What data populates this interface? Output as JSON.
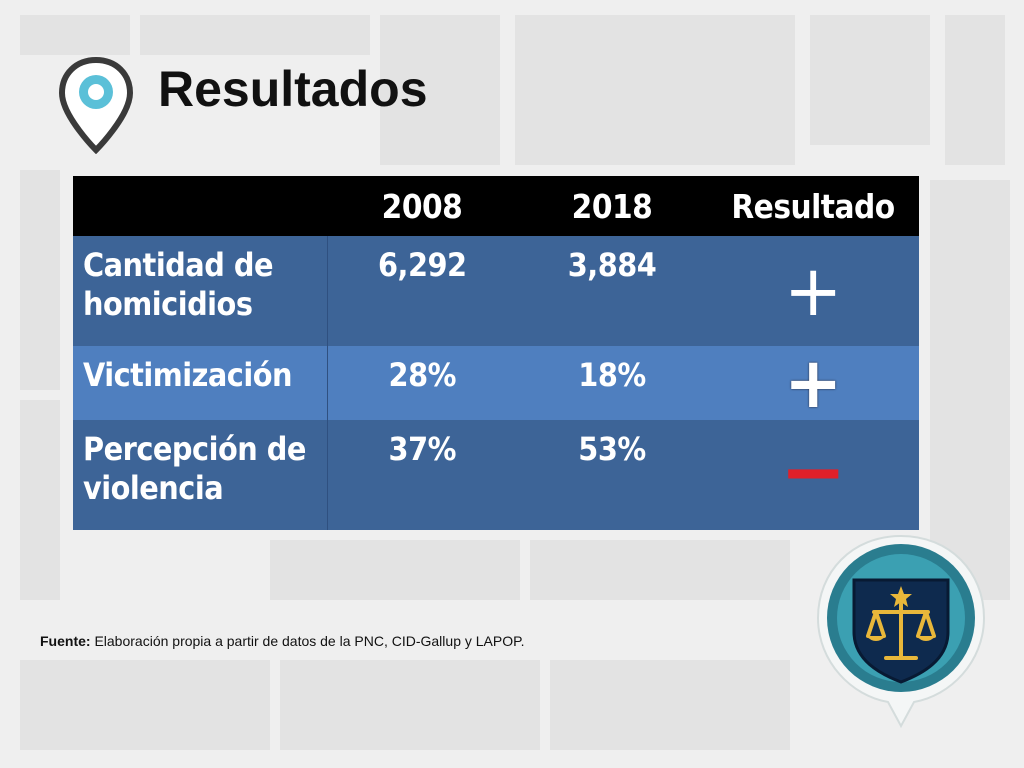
{
  "title": "Resultados",
  "table": {
    "headers": [
      "",
      "2008",
      "2018",
      "Resultado"
    ],
    "rows": [
      {
        "label_line1": "Cantidad de",
        "label_line2": "homicidios",
        "v2008": "6,292",
        "v2018": "3,884",
        "result": "+",
        "result_color": "#ffffff"
      },
      {
        "label_line1": "Victimización",
        "label_line2": "",
        "v2008": "28%",
        "v2018": "18%",
        "result": "+",
        "result_color": "#ffffff"
      },
      {
        "label_line1": "Percepción de",
        "label_line2": "violencia",
        "v2008": "37%",
        "v2018": "53%",
        "result": "−",
        "result_color": "#e0202a"
      }
    ]
  },
  "source": {
    "prefix": "Fuente:",
    "text": " Elaboración propia a partir de datos de la PNC, CID-Gallup y LAPOP."
  },
  "icons": {
    "pin": "map-pin-icon",
    "badge": "justice-scales-badge-icon"
  }
}
